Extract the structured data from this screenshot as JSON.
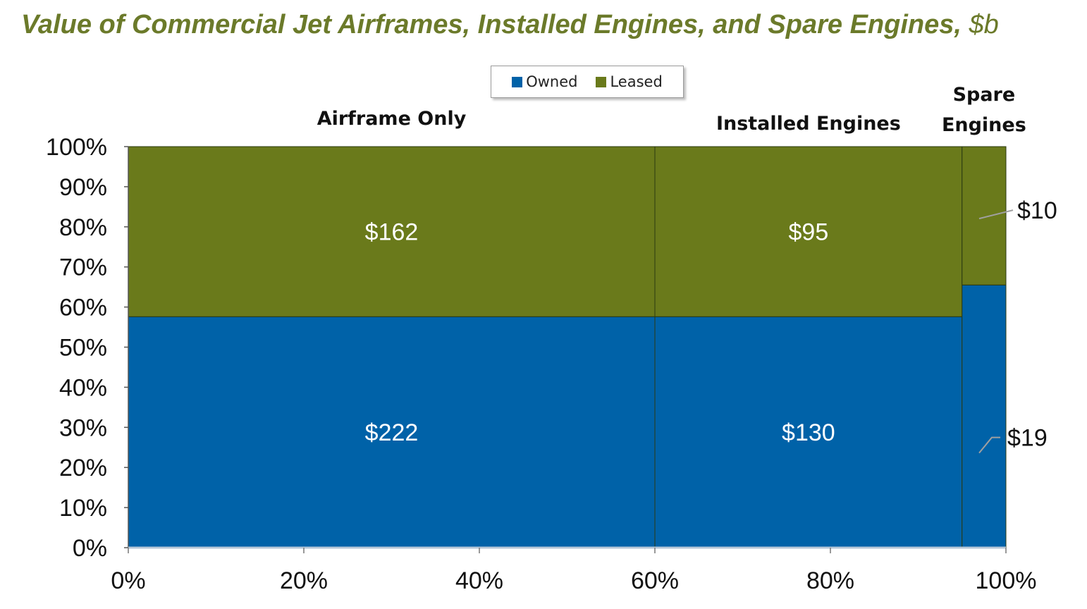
{
  "title": {
    "main": "Value of Commercial Jet Airframes, Installed Engines, and Spare Engines, ",
    "unit": "$b"
  },
  "colors": {
    "owned": "#0062a8",
    "leased": "#6a7a1b",
    "title": "#6b7a2a"
  },
  "legend": [
    {
      "label": "Owned",
      "color": "#0062a8"
    },
    {
      "label": "Leased",
      "color": "#6a7a1b"
    }
  ],
  "chart_data": {
    "type": "marimekko",
    "x_axis": {
      "range": [
        0,
        100
      ],
      "ticks": [
        "0%",
        "20%",
        "40%",
        "60%",
        "80%",
        "100%"
      ]
    },
    "y_axis": {
      "range": [
        0,
        100
      ],
      "ticks": [
        "0%",
        "10%",
        "20%",
        "30%",
        "40%",
        "50%",
        "60%",
        "70%",
        "80%",
        "90%",
        "100%"
      ]
    },
    "grid": false,
    "legend_position": "top-center",
    "columns": [
      {
        "category_lines": [
          "Airframe Only"
        ],
        "x_start": 0,
        "x_end": 60,
        "owned": {
          "value": 222,
          "label": "$222",
          "share": 57.6
        },
        "leased": {
          "value": 162,
          "label": "$162"
        }
      },
      {
        "category_lines": [
          "Installed Engines"
        ],
        "x_start": 60,
        "x_end": 95,
        "owned": {
          "value": 130,
          "label": "$130",
          "share": 57.6
        },
        "leased": {
          "value": 95,
          "label": "$95"
        }
      },
      {
        "category_lines": [
          "Spare",
          "Engines"
        ],
        "x_start": 95,
        "x_end": 100,
        "owned": {
          "value": 19,
          "label": "$19",
          "share": 65.5
        },
        "leased": {
          "value": 10,
          "label": "$10"
        }
      }
    ]
  }
}
